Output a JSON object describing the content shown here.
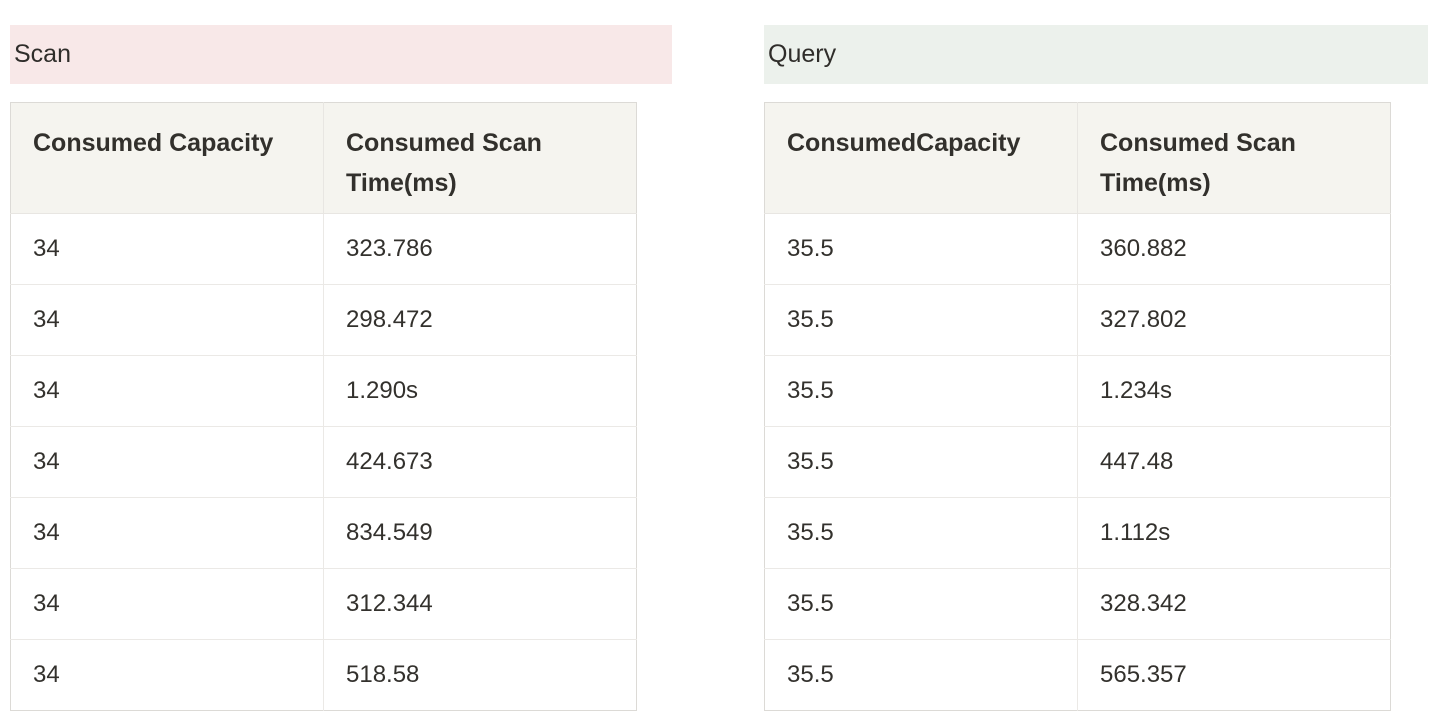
{
  "colors": {
    "scan_title_bg": "#f8e8e8",
    "query_title_bg": "#ecf1ec",
    "table_head_bg": "#f5f4ef",
    "table_outer_border": "#dcdad6",
    "table_inner_border": "#ebe9e6",
    "text": "#32302c"
  },
  "sections": [
    {
      "id": "scan",
      "title": "Scan",
      "title_bg": "#f8e8e8",
      "columns": [
        "Consumed Capacity",
        "Consumed Scan Time(ms)"
      ],
      "rows": [
        [
          "34",
          "323.786"
        ],
        [
          "34",
          "298.472"
        ],
        [
          "34",
          "1.290s"
        ],
        [
          "34",
          "424.673"
        ],
        [
          "34",
          "834.549"
        ],
        [
          "34",
          "312.344"
        ],
        [
          "34",
          "518.58"
        ]
      ]
    },
    {
      "id": "query",
      "title": "Query",
      "title_bg": "#ecf1ec",
      "columns": [
        "ConsumedCapacity",
        "Consumed Scan Time(ms)"
      ],
      "rows": [
        [
          "35.5",
          "360.882"
        ],
        [
          "35.5",
          "327.802"
        ],
        [
          "35.5",
          "1.234s"
        ],
        [
          "35.5",
          "447.48"
        ],
        [
          "35.5",
          "1.112s"
        ],
        [
          "35.5",
          "328.342"
        ],
        [
          "35.5",
          "565.357"
        ]
      ]
    }
  ]
}
